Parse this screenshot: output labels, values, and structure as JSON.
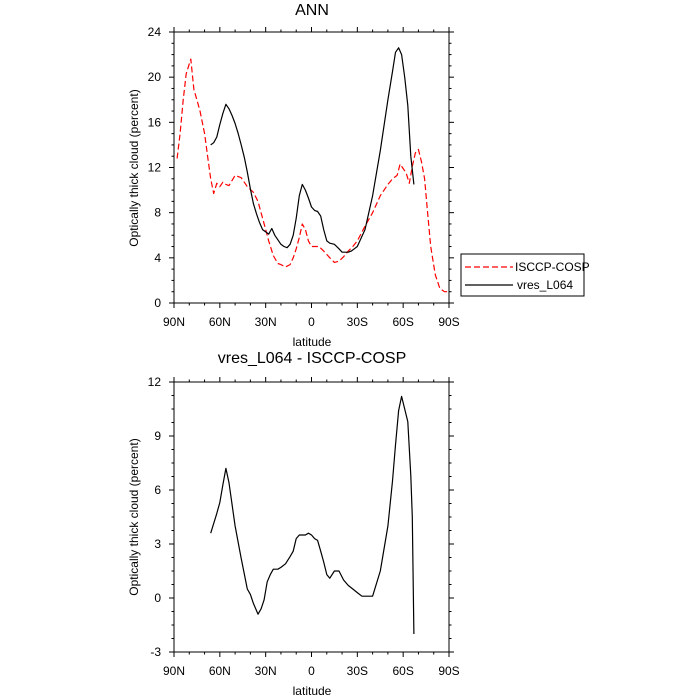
{
  "chart_data": [
    {
      "type": "line",
      "title": "ANN",
      "xlabel": "latitude",
      "ylabel": "Optically thick cloud (percent)",
      "xlim": [
        90,
        -90
      ],
      "ylim": [
        0,
        24
      ],
      "x_ticks": [
        90,
        60,
        30,
        0,
        -30,
        -60,
        -90
      ],
      "x_tick_labels": [
        "90N",
        "60N",
        "30N",
        "0",
        "30S",
        "60S",
        "90S"
      ],
      "y_ticks": [
        0,
        4,
        8,
        12,
        16,
        20,
        24
      ],
      "y_tick_labels": [
        "0",
        "4",
        "8",
        "12",
        "16",
        "20",
        "24"
      ],
      "legend": {
        "position": "right-outside"
      },
      "series": [
        {
          "name": "ISCCP-COSP",
          "color": "#ff0000",
          "dash": "dashed",
          "x": [
            88,
            86,
            84,
            82,
            79,
            77,
            75,
            73,
            70,
            68,
            66,
            64,
            62,
            60,
            58,
            56,
            54,
            50,
            46,
            42,
            38,
            35,
            32,
            30,
            28,
            25,
            22,
            20,
            17,
            14,
            12,
            10,
            8,
            6,
            4,
            2,
            0,
            -2,
            -5,
            -8,
            -12,
            -15,
            -18,
            -21,
            -24,
            -27,
            -30,
            -35,
            -40,
            -45,
            -50,
            -53,
            -56,
            -58,
            -60,
            -62,
            -64,
            -66,
            -68,
            -70,
            -72,
            -74,
            -76,
            -78,
            -81,
            -84,
            -87,
            -89
          ],
          "values": [
            12.8,
            15.0,
            18.0,
            20.3,
            21.6,
            18.9,
            18.0,
            17.0,
            15.0,
            13.0,
            11.0,
            9.7,
            10.6,
            10.3,
            10.7,
            10.5,
            10.4,
            11.3,
            11.1,
            10.3,
            9.8,
            9.0,
            7.5,
            6.5,
            5.5,
            4.2,
            3.5,
            3.4,
            3.2,
            3.4,
            4.0,
            4.8,
            5.8,
            7.0,
            6.5,
            5.5,
            5.0,
            5.0,
            5.0,
            4.6,
            4.0,
            3.6,
            3.7,
            4.1,
            4.6,
            5.0,
            5.5,
            6.8,
            8.0,
            9.5,
            10.5,
            11.0,
            11.3,
            12.3,
            11.9,
            11.5,
            10.6,
            12.1,
            13.3,
            13.6,
            12.5,
            11.0,
            8.0,
            5.0,
            2.5,
            1.3,
            1.0,
            1.0
          ]
        },
        {
          "name": "vres_L064",
          "color": "#000000",
          "dash": "solid",
          "x": [
            66,
            64,
            62,
            60,
            58,
            56,
            54,
            52,
            50,
            48,
            46,
            44,
            42,
            40,
            38,
            36,
            34,
            32,
            30,
            28,
            26,
            24,
            22,
            20,
            18,
            16,
            14,
            12,
            10,
            8,
            6,
            4,
            2,
            0,
            -2,
            -4,
            -6,
            -8,
            -10,
            -12,
            -15,
            -18,
            -20,
            -22,
            -24,
            -26,
            -28,
            -30,
            -35,
            -40,
            -45,
            -50,
            -53,
            -55,
            -57,
            -59,
            -61,
            -63,
            -65,
            -67
          ],
          "values": [
            14.0,
            14.2,
            14.7,
            15.8,
            16.8,
            17.6,
            17.2,
            16.6,
            15.9,
            15.0,
            14.0,
            12.9,
            11.6,
            10.1,
            8.8,
            7.9,
            7.1,
            6.5,
            6.3,
            6.1,
            6.6,
            6.0,
            5.6,
            5.2,
            5.0,
            4.9,
            5.2,
            6.0,
            7.5,
            9.5,
            10.5,
            10.0,
            9.3,
            8.5,
            8.2,
            8.1,
            7.7,
            6.5,
            5.5,
            5.3,
            5.2,
            4.8,
            4.5,
            4.5,
            4.5,
            4.6,
            4.8,
            5.0,
            6.5,
            9.5,
            13.5,
            18.0,
            20.5,
            22.2,
            22.6,
            22.0,
            20.0,
            17.5,
            13.0,
            10.5
          ]
        }
      ]
    },
    {
      "type": "line",
      "title": "vres_L064 - ISCCP-COSP",
      "xlabel": "latitude",
      "ylabel": "Optically thick cloud (percent)",
      "xlim": [
        90,
        -90
      ],
      "ylim": [
        -3,
        12
      ],
      "x_ticks": [
        90,
        60,
        30,
        0,
        -30,
        -60,
        -90
      ],
      "x_tick_labels": [
        "90N",
        "60N",
        "30N",
        "0",
        "30S",
        "60S",
        "90S"
      ],
      "y_ticks": [
        -3,
        0,
        3,
        6,
        9,
        12
      ],
      "y_tick_labels": [
        "-3",
        "0",
        "3",
        "6",
        "9",
        "12"
      ],
      "series": [
        {
          "name": "vres_L064 - ISCCP-COSP",
          "color": "#000000",
          "dash": "solid",
          "x": [
            66,
            62,
            60,
            58,
            56,
            54,
            50,
            46,
            42,
            40,
            38,
            36,
            35,
            33,
            31,
            29,
            27,
            25,
            22,
            20,
            17,
            14,
            12,
            10,
            8,
            6,
            4,
            2,
            0,
            -2,
            -4,
            -6,
            -8,
            -10,
            -12,
            -15,
            -18,
            -21,
            -24,
            -27,
            -30,
            -33,
            -36,
            -40,
            -45,
            -50,
            -53,
            -55,
            -57,
            -59,
            -61,
            -63,
            -65,
            -66,
            -67
          ],
          "values": [
            3.6,
            4.7,
            5.3,
            6.3,
            7.2,
            6.4,
            4.0,
            2.2,
            0.5,
            0.2,
            -0.3,
            -0.7,
            -0.9,
            -0.6,
            -0.1,
            0.9,
            1.3,
            1.6,
            1.6,
            1.7,
            1.9,
            2.3,
            2.6,
            3.3,
            3.5,
            3.5,
            3.5,
            3.6,
            3.5,
            3.3,
            3.2,
            2.6,
            2.0,
            1.3,
            1.1,
            1.5,
            1.5,
            1.0,
            0.7,
            0.5,
            0.3,
            0.1,
            0.1,
            0.1,
            1.5,
            4.0,
            6.5,
            8.5,
            10.4,
            11.2,
            10.5,
            9.8,
            6.8,
            4.5,
            -2.0
          ]
        }
      ]
    }
  ]
}
